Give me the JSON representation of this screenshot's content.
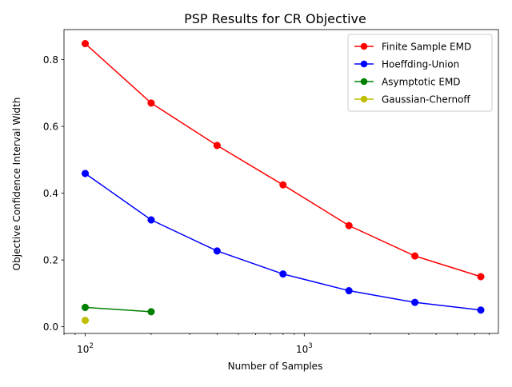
{
  "chart_data": {
    "type": "line",
    "title": "PSP Results for CR Objective",
    "xlabel": "Number of Samples",
    "ylabel": "Objective Confidence Interval Width",
    "x_scale": "log",
    "xlim": [
      80,
      7700
    ],
    "ylim": [
      -0.02,
      0.89
    ],
    "x_ticks": [
      {
        "value": 100,
        "base": "10",
        "exp": "2"
      },
      {
        "value": 1000,
        "base": "10",
        "exp": "3"
      }
    ],
    "y_ticks": [
      {
        "value": 0.0,
        "label": "0.0"
      },
      {
        "value": 0.2,
        "label": "0.2"
      },
      {
        "value": 0.4,
        "label": "0.4"
      },
      {
        "value": 0.6,
        "label": "0.6"
      },
      {
        "value": 0.8,
        "label": "0.8"
      }
    ],
    "grid": false,
    "legend_position": "top-right",
    "series": [
      {
        "name": "Finite Sample EMD",
        "color": "#ff0000",
        "x": [
          100,
          200,
          400,
          800,
          1600,
          3200,
          6400
        ],
        "y": [
          0.848,
          0.67,
          0.543,
          0.425,
          0.303,
          0.212,
          0.15
        ]
      },
      {
        "name": "Hoeffding-Union",
        "color": "#0000ff",
        "x": [
          100,
          200,
          400,
          800,
          1600,
          3200,
          6400
        ],
        "y": [
          0.459,
          0.32,
          0.227,
          0.158,
          0.108,
          0.073,
          0.05
        ]
      },
      {
        "name": "Asymptotic EMD",
        "color": "#008000",
        "x": [
          100,
          200
        ],
        "y": [
          0.058,
          0.045
        ]
      },
      {
        "name": "Gaussian-Chernoff",
        "color": "#bfbf00",
        "x": [
          100
        ],
        "y": [
          0.019
        ]
      }
    ]
  }
}
